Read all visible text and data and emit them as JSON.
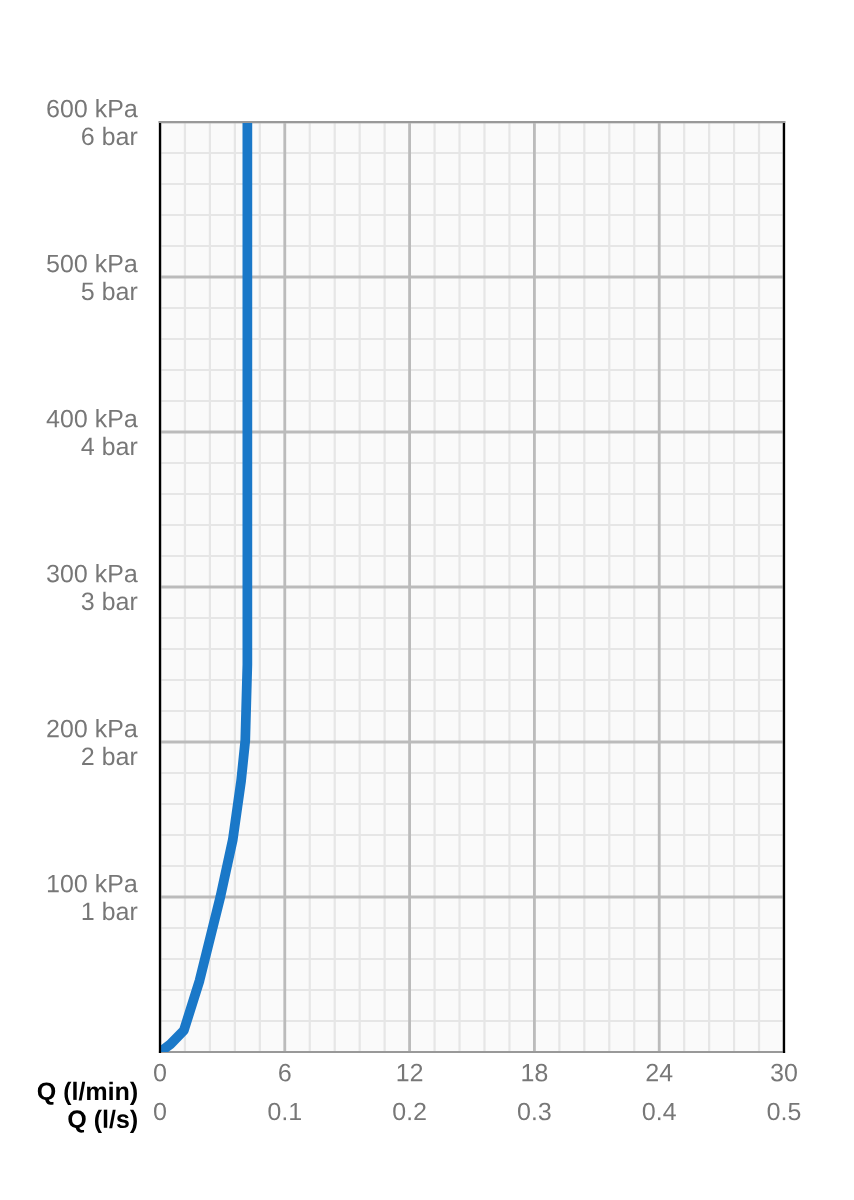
{
  "chart_data": {
    "type": "line",
    "xlabel": "Q (l/min)",
    "x2label": "Q (l/s)",
    "x": [
      0,
      0.5,
      1.15,
      1.9,
      2.9,
      3.5,
      3.9,
      4.1,
      4.2,
      4.2
    ],
    "series": [
      {
        "color": "#1a78c8",
        "values": [
          0,
          5,
          14,
          46,
          100,
          137,
          175,
          201,
          250,
          600
        ]
      }
    ],
    "xlim": [
      0,
      30
    ],
    "xticks": [
      0,
      6,
      12,
      18,
      24,
      30
    ],
    "x2lim": [
      0,
      0.5
    ],
    "x2ticks": [
      0,
      0.1,
      0.2,
      0.3,
      0.4,
      0.5
    ],
    "ylim": [
      0,
      600
    ],
    "yticks": [
      {
        "value": 100,
        "label": "100 kPa"
      },
      {
        "value": 200,
        "label": "200 kPa"
      },
      {
        "value": 300,
        "label": "300 kPa"
      },
      {
        "value": 400,
        "label": "400 kPa"
      },
      {
        "value": 500,
        "label": "500 kPa"
      },
      {
        "value": 600,
        "label": "600 kPa"
      }
    ],
    "y2lim": [
      0,
      6
    ],
    "y2ticks": [
      {
        "value": 1,
        "label": "1 bar"
      },
      {
        "value": 2,
        "label": "2 bar"
      },
      {
        "value": 3,
        "label": "3 bar"
      },
      {
        "value": 4,
        "label": "4 bar"
      },
      {
        "value": 5,
        "label": "5 bar"
      },
      {
        "value": 6,
        "label": "6 bar"
      }
    ],
    "grid": true,
    "marker": "none",
    "line_style": "solid",
    "legend": false
  }
}
